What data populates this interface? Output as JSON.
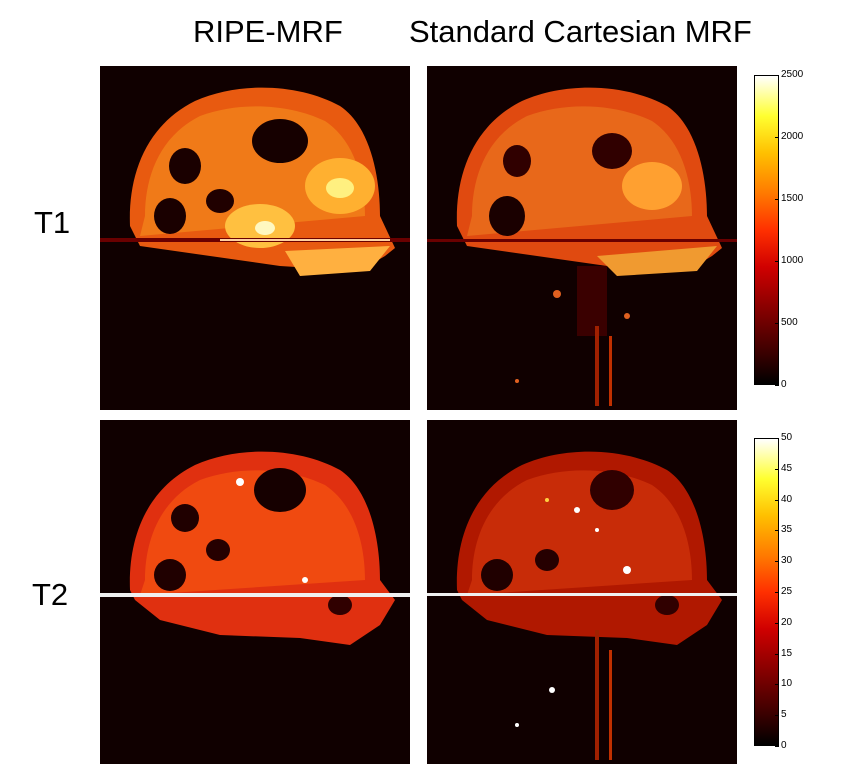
{
  "columns": {
    "left_title": "RIPE-MRF",
    "right_title": "Standard Cartesian MRF"
  },
  "rows": {
    "t1_label": "T1",
    "t2_label": "T2"
  },
  "colorbars": {
    "t1": {
      "ticks": [
        "2500",
        "2000",
        "1500",
        "1000",
        "500",
        "0"
      ],
      "range": [
        0,
        2500
      ]
    },
    "t2": {
      "ticks": [
        "50",
        "45",
        "40",
        "35",
        "30",
        "25",
        "20",
        "15",
        "10",
        "5",
        "0"
      ],
      "range": [
        0,
        50
      ]
    }
  },
  "colors": {
    "background": "#100000",
    "hot_low": "#000000",
    "hot_mid": "#ff3000",
    "hot_high": "#ffffff"
  }
}
